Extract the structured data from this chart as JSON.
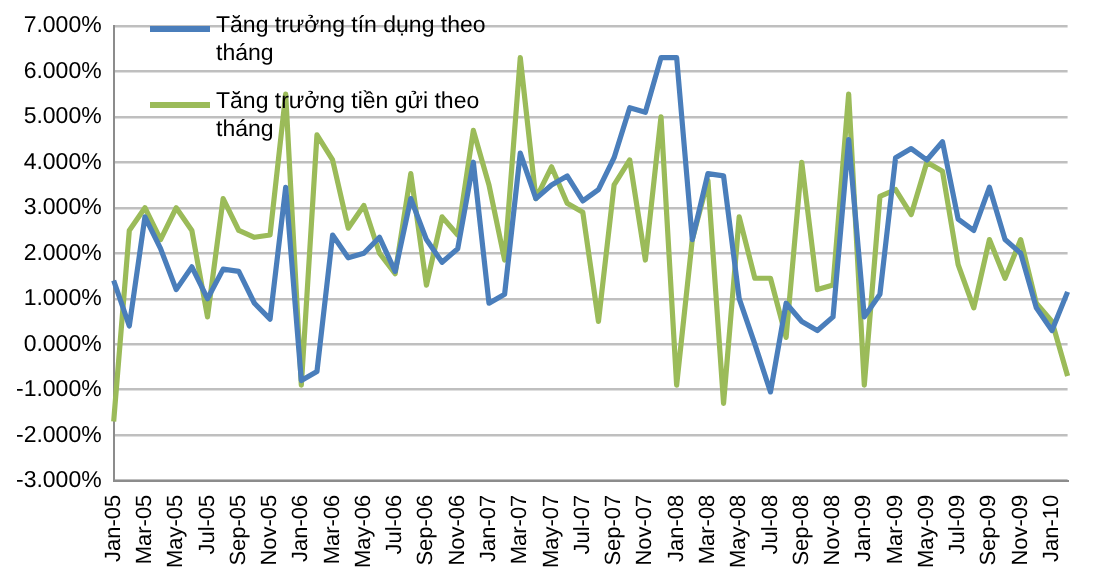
{
  "chart_data": {
    "type": "line",
    "categories": [
      "Jan-05",
      null,
      "Mar-05",
      null,
      "May-05",
      null,
      "Jul-05",
      null,
      "Sep-05",
      null,
      "Nov-05",
      null,
      "Jan-06",
      null,
      "Mar-06",
      null,
      "May-06",
      null,
      "Jul-06",
      null,
      "Sep-06",
      null,
      "Nov-06",
      null,
      "Jan-07",
      null,
      "Mar-07",
      null,
      "May-07",
      null,
      "Jul-07",
      null,
      "Sep-07",
      null,
      "Nov-07",
      null,
      "Jan-08",
      null,
      "Mar-08",
      null,
      "May-08",
      null,
      "Jul-08",
      null,
      "Sep-08",
      null,
      "Nov-08",
      null,
      "Jan-09",
      null,
      "Mar-09",
      null,
      "May-09",
      null,
      "Jul-09",
      null,
      "Sep-09",
      null,
      "Nov-09",
      null,
      "Jan-10",
      null
    ],
    "series": [
      {
        "name": "Tăng trưởng tín dụng theo tháng",
        "color": "#4a7ebb",
        "values": [
          1.4,
          0.4,
          2.8,
          2.1,
          1.2,
          1.7,
          1.0,
          1.65,
          1.6,
          0.9,
          0.55,
          3.45,
          -0.8,
          -0.6,
          2.4,
          1.9,
          2.0,
          2.35,
          1.6,
          3.2,
          2.3,
          1.8,
          2.1,
          4.0,
          0.9,
          1.1,
          4.2,
          3.2,
          3.5,
          3.7,
          3.15,
          3.4,
          4.1,
          5.2,
          5.1,
          6.3,
          6.3,
          2.3,
          3.75,
          3.7,
          1.0,
          0.0,
          -1.05,
          0.9,
          0.5,
          0.3,
          0.6,
          4.5,
          0.6,
          1.1,
          4.1,
          4.3,
          4.05,
          4.45,
          2.75,
          2.5,
          3.45,
          2.3,
          2.0,
          0.8,
          0.3,
          1.15
        ]
      },
      {
        "name": "Tăng trưởng tiền gửi theo tháng",
        "color": "#9bbb59",
        "values": [
          -1.7,
          2.5,
          3.0,
          2.3,
          3.0,
          2.5,
          0.6,
          3.2,
          2.5,
          2.35,
          2.4,
          5.5,
          -0.9,
          4.6,
          4.05,
          2.55,
          3.05,
          2.0,
          1.55,
          3.75,
          1.3,
          2.8,
          2.4,
          4.7,
          3.5,
          1.85,
          6.3,
          3.2,
          3.9,
          3.1,
          2.9,
          0.5,
          3.5,
          4.05,
          1.85,
          5.0,
          -0.9,
          2.3,
          3.6,
          -1.3,
          2.8,
          1.45,
          1.45,
          0.15,
          4.0,
          1.2,
          1.3,
          5.5,
          -0.9,
          3.25,
          3.4,
          2.85,
          4.0,
          3.8,
          1.75,
          0.8,
          2.3,
          1.45,
          2.3,
          0.9,
          0.5,
          -0.7
        ]
      }
    ],
    "ylim": [
      -3,
      7
    ],
    "yticks": [
      {
        "value": -3,
        "label": "-3.000%"
      },
      {
        "value": -2,
        "label": "-2.000%"
      },
      {
        "value": -1,
        "label": "-1.000%"
      },
      {
        "value": 0,
        "label": "0.000%"
      },
      {
        "value": 1,
        "label": "1.000%"
      },
      {
        "value": 2,
        "label": "2.000%"
      },
      {
        "value": 3,
        "label": "3.000%"
      },
      {
        "value": 4,
        "label": "4.000%"
      },
      {
        "value": 5,
        "label": "5.000%"
      },
      {
        "value": 6,
        "label": "6.000%"
      },
      {
        "value": 7,
        "label": "7.000%"
      }
    ],
    "grid": "y",
    "legend": "top left",
    "marker": "none",
    "line_style": "solid"
  }
}
